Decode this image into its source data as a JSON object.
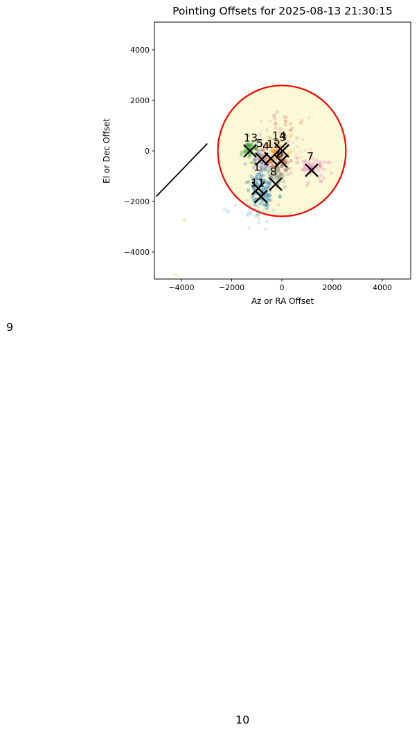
{
  "outside_labels": [
    {
      "text": "9"
    },
    {
      "text": "10"
    }
  ],
  "chart_data": {
    "type": "scatter",
    "title": "Pointing Offsets for 2025-08-13 21:30:15",
    "xlabel": "Az or RA Offset",
    "ylabel": "El or Dec Offset",
    "xlim": [
      -5075,
      5131
    ],
    "ylim": [
      -5069,
      5095
    ],
    "xticks": [
      -4000,
      -2000,
      0,
      2000,
      4000
    ],
    "yticks": [
      -4000,
      -2000,
      0,
      2000,
      4000
    ],
    "grid": false,
    "legend": "none",
    "axes_facecolor": "#ffffff",
    "reference_circle": {
      "cx": 0,
      "cy": 0,
      "rx": 2550,
      "ry": 2590,
      "fill": "#fcf9d6",
      "edge_color": "#ff0000",
      "edge_width": 2.2
    },
    "reference_line": {
      "x1": -5000,
      "y1": -1800,
      "x2": -2970,
      "y2": 290,
      "color": "#000000",
      "width": 1.8
    },
    "clusters": [
      {
        "name": "cluster-13",
        "color": "#2ca02c",
        "cx": -1270,
        "cy": 30,
        "sx": 180,
        "sy": 190,
        "n": 45,
        "alpha": 0.33
      },
      {
        "name": "cluster-5",
        "color": "#9467bd",
        "cx": -790,
        "cy": -270,
        "sx": 200,
        "sy": 240,
        "n": 50,
        "alpha": 0.3
      },
      {
        "name": "cluster-5-halo",
        "color": "#9467bd",
        "cx": -750,
        "cy": 500,
        "sx": 420,
        "sy": 480,
        "n": 12,
        "alpha": 0.14
      },
      {
        "name": "cluster-12",
        "color": "#ff7f0e",
        "cx": -230,
        "cy": -120,
        "sx": 240,
        "sy": 300,
        "n": 60,
        "alpha": 0.3
      },
      {
        "name": "cluster-12-halo",
        "color": "#ff7f0e",
        "cx": -200,
        "cy": 600,
        "sx": 350,
        "sy": 350,
        "n": 10,
        "alpha": 0.14
      },
      {
        "name": "cluster-6",
        "color": "#8c564b",
        "cx": -60,
        "cy": -550,
        "sx": 190,
        "sy": 190,
        "n": 35,
        "alpha": 0.3
      },
      {
        "name": "cluster-8",
        "color": "#7f7f7f",
        "cx": -200,
        "cy": -930,
        "sx": 240,
        "sy": 240,
        "n": 45,
        "alpha": 0.28
      },
      {
        "name": "cluster-8-halo",
        "color": "#7f7f7f",
        "cx": 300,
        "cy": 250,
        "sx": 380,
        "sy": 380,
        "n": 10,
        "alpha": 0.12
      },
      {
        "name": "cluster-1",
        "color": "#1f77b4",
        "cx": -880,
        "cy": -1200,
        "sx": 210,
        "sy": 210,
        "n": 50,
        "alpha": 0.3
      },
      {
        "name": "cluster-11",
        "color": "#1f77b4",
        "cx": -770,
        "cy": -1790,
        "sx": 240,
        "sy": 240,
        "n": 65,
        "alpha": 0.3
      },
      {
        "name": "cluster-11-halo",
        "color": "#1f77b4",
        "cx": -1050,
        "cy": -2250,
        "sx": 550,
        "sy": 300,
        "n": 28,
        "alpha": 0.14
      },
      {
        "name": "cluster-7",
        "color": "#e377c2",
        "cx": 1210,
        "cy": -690,
        "sx": 290,
        "sy": 230,
        "n": 60,
        "alpha": 0.3
      },
      {
        "name": "cluster-7-halo",
        "color": "#e377c2",
        "cx": 640,
        "cy": -280,
        "sx": 380,
        "sy": 320,
        "n": 14,
        "alpha": 0.13
      },
      {
        "name": "cluster-14",
        "color": "#d62728",
        "cx": 30,
        "cy": 1000,
        "sx": 360,
        "sy": 300,
        "n": 20,
        "alpha": 0.17
      }
    ],
    "outlier_points": [
      {
        "x": -3890,
        "y": -2740,
        "color": "#bcbd22",
        "alpha": 0.3
      },
      {
        "x": -4230,
        "y": -4900,
        "color": "#bcbd22",
        "alpha": 0.22
      },
      {
        "x": -960,
        "y": -2550,
        "color": "#bcbd22",
        "alpha": 0.28
      },
      {
        "x": -2150,
        "y": -2400,
        "color": "#1f77b4",
        "alpha": 0.22
      }
    ],
    "fit_markers": [
      {
        "x": -1269,
        "y": 0
      },
      {
        "x": -800,
        "y": -329
      },
      {
        "x": -441,
        "y": -301
      },
      {
        "x": -55,
        "y": 82
      },
      {
        "x": 28,
        "y": 0
      },
      {
        "x": -28,
        "y": -411
      },
      {
        "x": -248,
        "y": -1315
      },
      {
        "x": -938,
        "y": -1479
      },
      {
        "x": -828,
        "y": -1808
      },
      {
        "x": 1186,
        "y": -767
      }
    ],
    "cluster_labels": [
      {
        "text": "13",
        "x": -1241,
        "y": 521
      },
      {
        "text": "5",
        "x": -883,
        "y": 301
      },
      {
        "text": "4",
        "x": -634,
        "y": 192
      },
      {
        "text": "12",
        "x": -331,
        "y": 274
      },
      {
        "text": "14",
        "x": -110,
        "y": 603
      },
      {
        "text": "3",
        "x": 55,
        "y": 548
      },
      {
        "text": "6",
        "x": -83,
        "y": -82
      },
      {
        "text": "1",
        "x": -993,
        "y": -630
      },
      {
        "text": "8",
        "x": -331,
        "y": -822
      },
      {
        "text": "11",
        "x": -966,
        "y": -1260
      },
      {
        "text": "7",
        "x": 1131,
        "y": -219
      }
    ]
  }
}
